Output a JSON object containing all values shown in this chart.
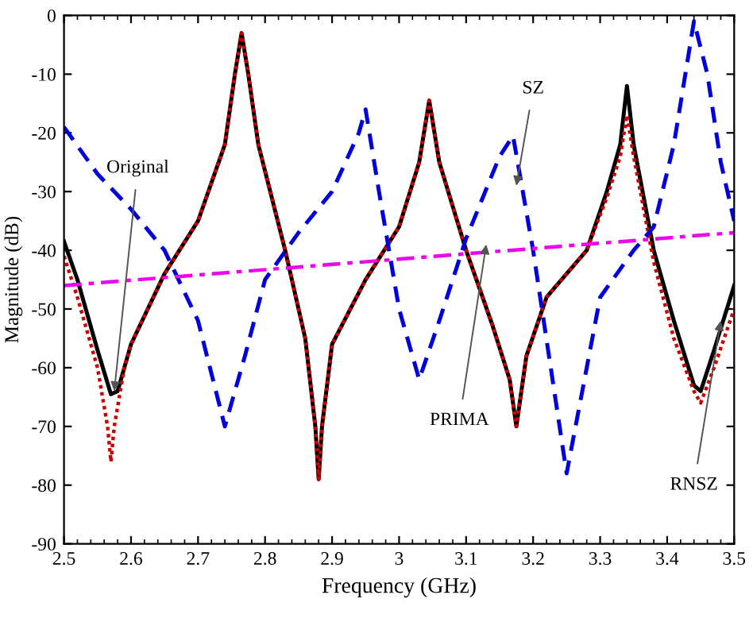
{
  "chart_data": {
    "type": "line",
    "xlabel": "Frequency (GHz)",
    "ylabel": "Magnitude (dB)",
    "xlim": [
      2.5,
      3.5
    ],
    "ylim": [
      -90,
      0
    ],
    "xticks": [
      2.5,
      2.6,
      2.7,
      2.8,
      2.9,
      3,
      3.1,
      3.2,
      3.3,
      3.4,
      3.5
    ],
    "yticks": [
      -90,
      -80,
      -70,
      -60,
      -50,
      -40,
      -30,
      -20,
      -10,
      0
    ],
    "grid": false,
    "legend": false,
    "series": [
      {
        "color": "#000000",
        "line_style": "solid",
        "x": [
          2.5,
          2.52,
          2.55,
          2.57,
          2.58,
          2.6,
          2.65,
          2.7,
          2.74,
          2.755,
          2.765,
          2.775,
          2.79,
          2.83,
          2.86,
          2.875,
          2.88,
          2.885,
          2.9,
          2.95,
          3.0,
          3.03,
          3.045,
          3.06,
          3.1,
          3.14,
          3.165,
          3.175,
          3.19,
          3.22,
          3.28,
          3.31,
          3.33,
          3.34,
          3.35,
          3.38,
          3.41,
          3.44,
          3.45,
          3.47,
          3.5
        ],
        "values": [
          -38.5,
          -45,
          -57,
          -64.5,
          -64,
          -56,
          -44,
          -35,
          -22,
          -10,
          -3,
          -10,
          -22,
          -40,
          -55,
          -70,
          -79,
          -70,
          -56,
          -45,
          -36,
          -25,
          -14.5,
          -25,
          -40,
          -53,
          -62,
          -70,
          -58,
          -48,
          -40,
          -30,
          -22,
          -12,
          -22,
          -40,
          -52,
          -63,
          -64,
          -57,
          -46
        ]
      },
      {
        "color": "#cc0000",
        "line_style": "dotted",
        "x": [
          2.5,
          2.52,
          2.55,
          2.565,
          2.57,
          2.575,
          2.59,
          2.6,
          2.65,
          2.7,
          2.74,
          2.755,
          2.765,
          2.775,
          2.79,
          2.83,
          2.86,
          2.875,
          2.88,
          2.885,
          2.9,
          2.95,
          3.0,
          3.03,
          3.045,
          3.06,
          3.1,
          3.14,
          3.165,
          3.175,
          3.19,
          3.22,
          3.28,
          3.31,
          3.33,
          3.34,
          3.35,
          3.38,
          3.41,
          3.44,
          3.45,
          3.47,
          3.5
        ],
        "values": [
          -41,
          -48,
          -60,
          -70,
          -76,
          -70,
          -60,
          -56,
          -44,
          -35,
          -22,
          -10,
          -3,
          -10,
          -22,
          -40,
          -55,
          -70,
          -79,
          -70,
          -56,
          -45,
          -36,
          -25,
          -14.5,
          -25,
          -40,
          -53,
          -62,
          -70,
          -58,
          -48,
          -40,
          -31,
          -24,
          -17,
          -24,
          -42,
          -55,
          -64,
          -66,
          -60,
          -50
        ]
      },
      {
        "color": "#0000dd",
        "line_style": "dashed",
        "x": [
          2.5,
          2.55,
          2.6,
          2.65,
          2.7,
          2.74,
          2.77,
          2.8,
          2.85,
          2.9,
          2.94,
          2.95,
          2.97,
          3.0,
          3.03,
          3.06,
          3.1,
          3.15,
          3.17,
          3.2,
          3.25,
          3.28,
          3.3,
          3.35,
          3.38,
          3.41,
          3.43,
          3.44,
          3.46,
          3.48,
          3.5
        ],
        "values": [
          -19,
          -27,
          -33,
          -40,
          -52,
          -70,
          -58,
          -45,
          -37,
          -30,
          -20,
          -16,
          -30,
          -50,
          -62,
          -52,
          -38,
          -24,
          -20.5,
          -40,
          -78,
          -60,
          -48,
          -40,
          -36,
          -22,
          -8,
          -1,
          -10,
          -25,
          -35
        ]
      },
      {
        "color": "#ee00ee",
        "line_style": "dashdot",
        "x": [
          2.5,
          3.5
        ],
        "values": [
          -46,
          -37
        ]
      }
    ],
    "annotations": [
      {
        "text": "Original",
        "x": 2.575,
        "y": -64
      },
      {
        "text": "SZ",
        "x": 3.175,
        "y": -29
      },
      {
        "text": "PRIMA",
        "x": 3.13,
        "y": -39
      },
      {
        "text": "RNSZ",
        "x": 3.48,
        "y": -52
      }
    ]
  }
}
